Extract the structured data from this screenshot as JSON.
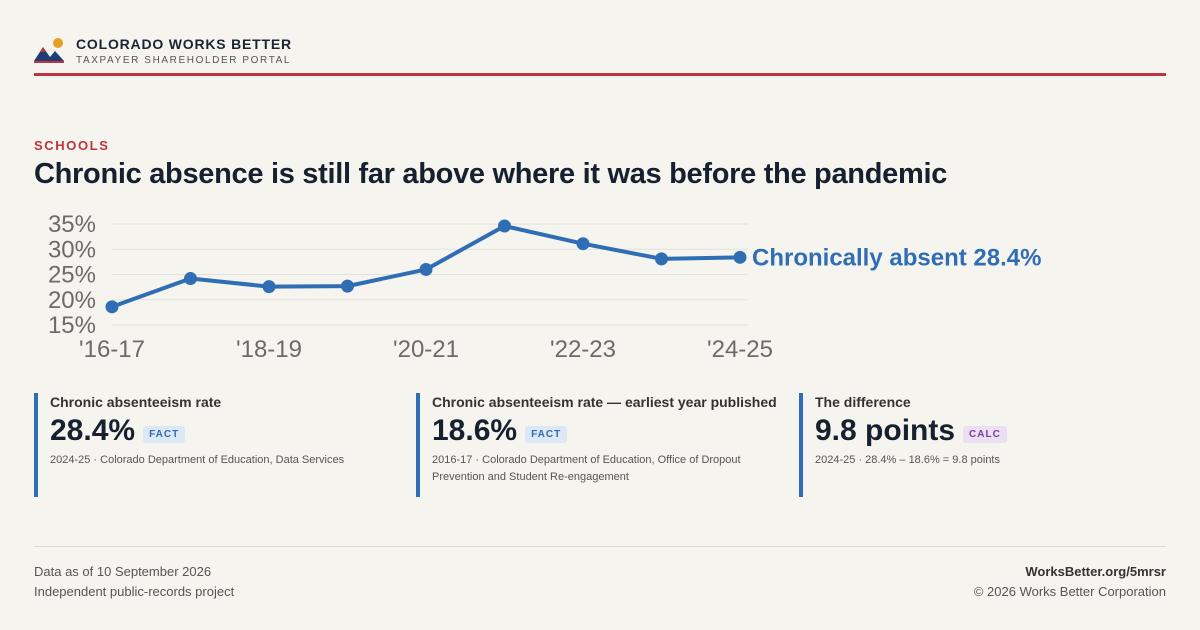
{
  "brand": {
    "name": "COLORADO WORKS BETTER",
    "subtitle": "TAXPAYER SHAREHOLDER PORTAL"
  },
  "section": "SCHOOLS",
  "headline": "Chronic absence is still far above where it was before the pandemic",
  "chart_data": {
    "type": "line",
    "title": "",
    "xlabel": "",
    "ylabel": "",
    "ylim": [
      15,
      35
    ],
    "yticks": [
      "35%",
      "30%",
      "25%",
      "20%",
      "15%"
    ],
    "ytick_values": [
      35,
      30,
      25,
      20,
      15
    ],
    "x": [
      "'16-17",
      "'17-18",
      "'18-19",
      "'19-20",
      "'20-21",
      "'21-22",
      "'22-23",
      "'23-24",
      "'24-25"
    ],
    "xtick_labels": [
      "'16-17",
      "'18-19",
      "'20-21",
      "'22-23",
      "'24-25"
    ],
    "xtick_indices": [
      0,
      2,
      4,
      6,
      8
    ],
    "grid": true,
    "series": [
      {
        "name": "Chronically absent",
        "values": [
          18.6,
          24.2,
          22.6,
          22.7,
          26.0,
          34.6,
          31.1,
          28.1,
          28.4
        ],
        "color": "#2f6db5"
      }
    ],
    "end_label": "Chronically absent 28.4%"
  },
  "stats": [
    {
      "label": "Chronic absenteeism rate",
      "value": "28.4%",
      "badge": "FACT",
      "source": "2024-25 · Colorado Department of Education, Data Services"
    },
    {
      "label": "Chronic absenteeism rate — earliest year published",
      "value": "18.6%",
      "badge": "FACT",
      "source": "2016-17 · Colorado Department of Education, Office of Dropout Prevention and Student Re-engagement"
    },
    {
      "label": "The difference",
      "value": "9.8 points",
      "badge": "CALC",
      "source": "2024-25 · 28.4% – 18.6% = 9.8 points"
    }
  ],
  "footer": {
    "as_of": "Data as of 10 September 2026",
    "project": "Independent public-records project",
    "url": "WorksBetter.org/5mrsr",
    "copyright": "© 2026 Works Better Corporation"
  },
  "colors": {
    "accent": "#c0343d",
    "series": "#2f6db5",
    "background": "#f5f4ef",
    "calc_badge": "#7a3f9e"
  }
}
